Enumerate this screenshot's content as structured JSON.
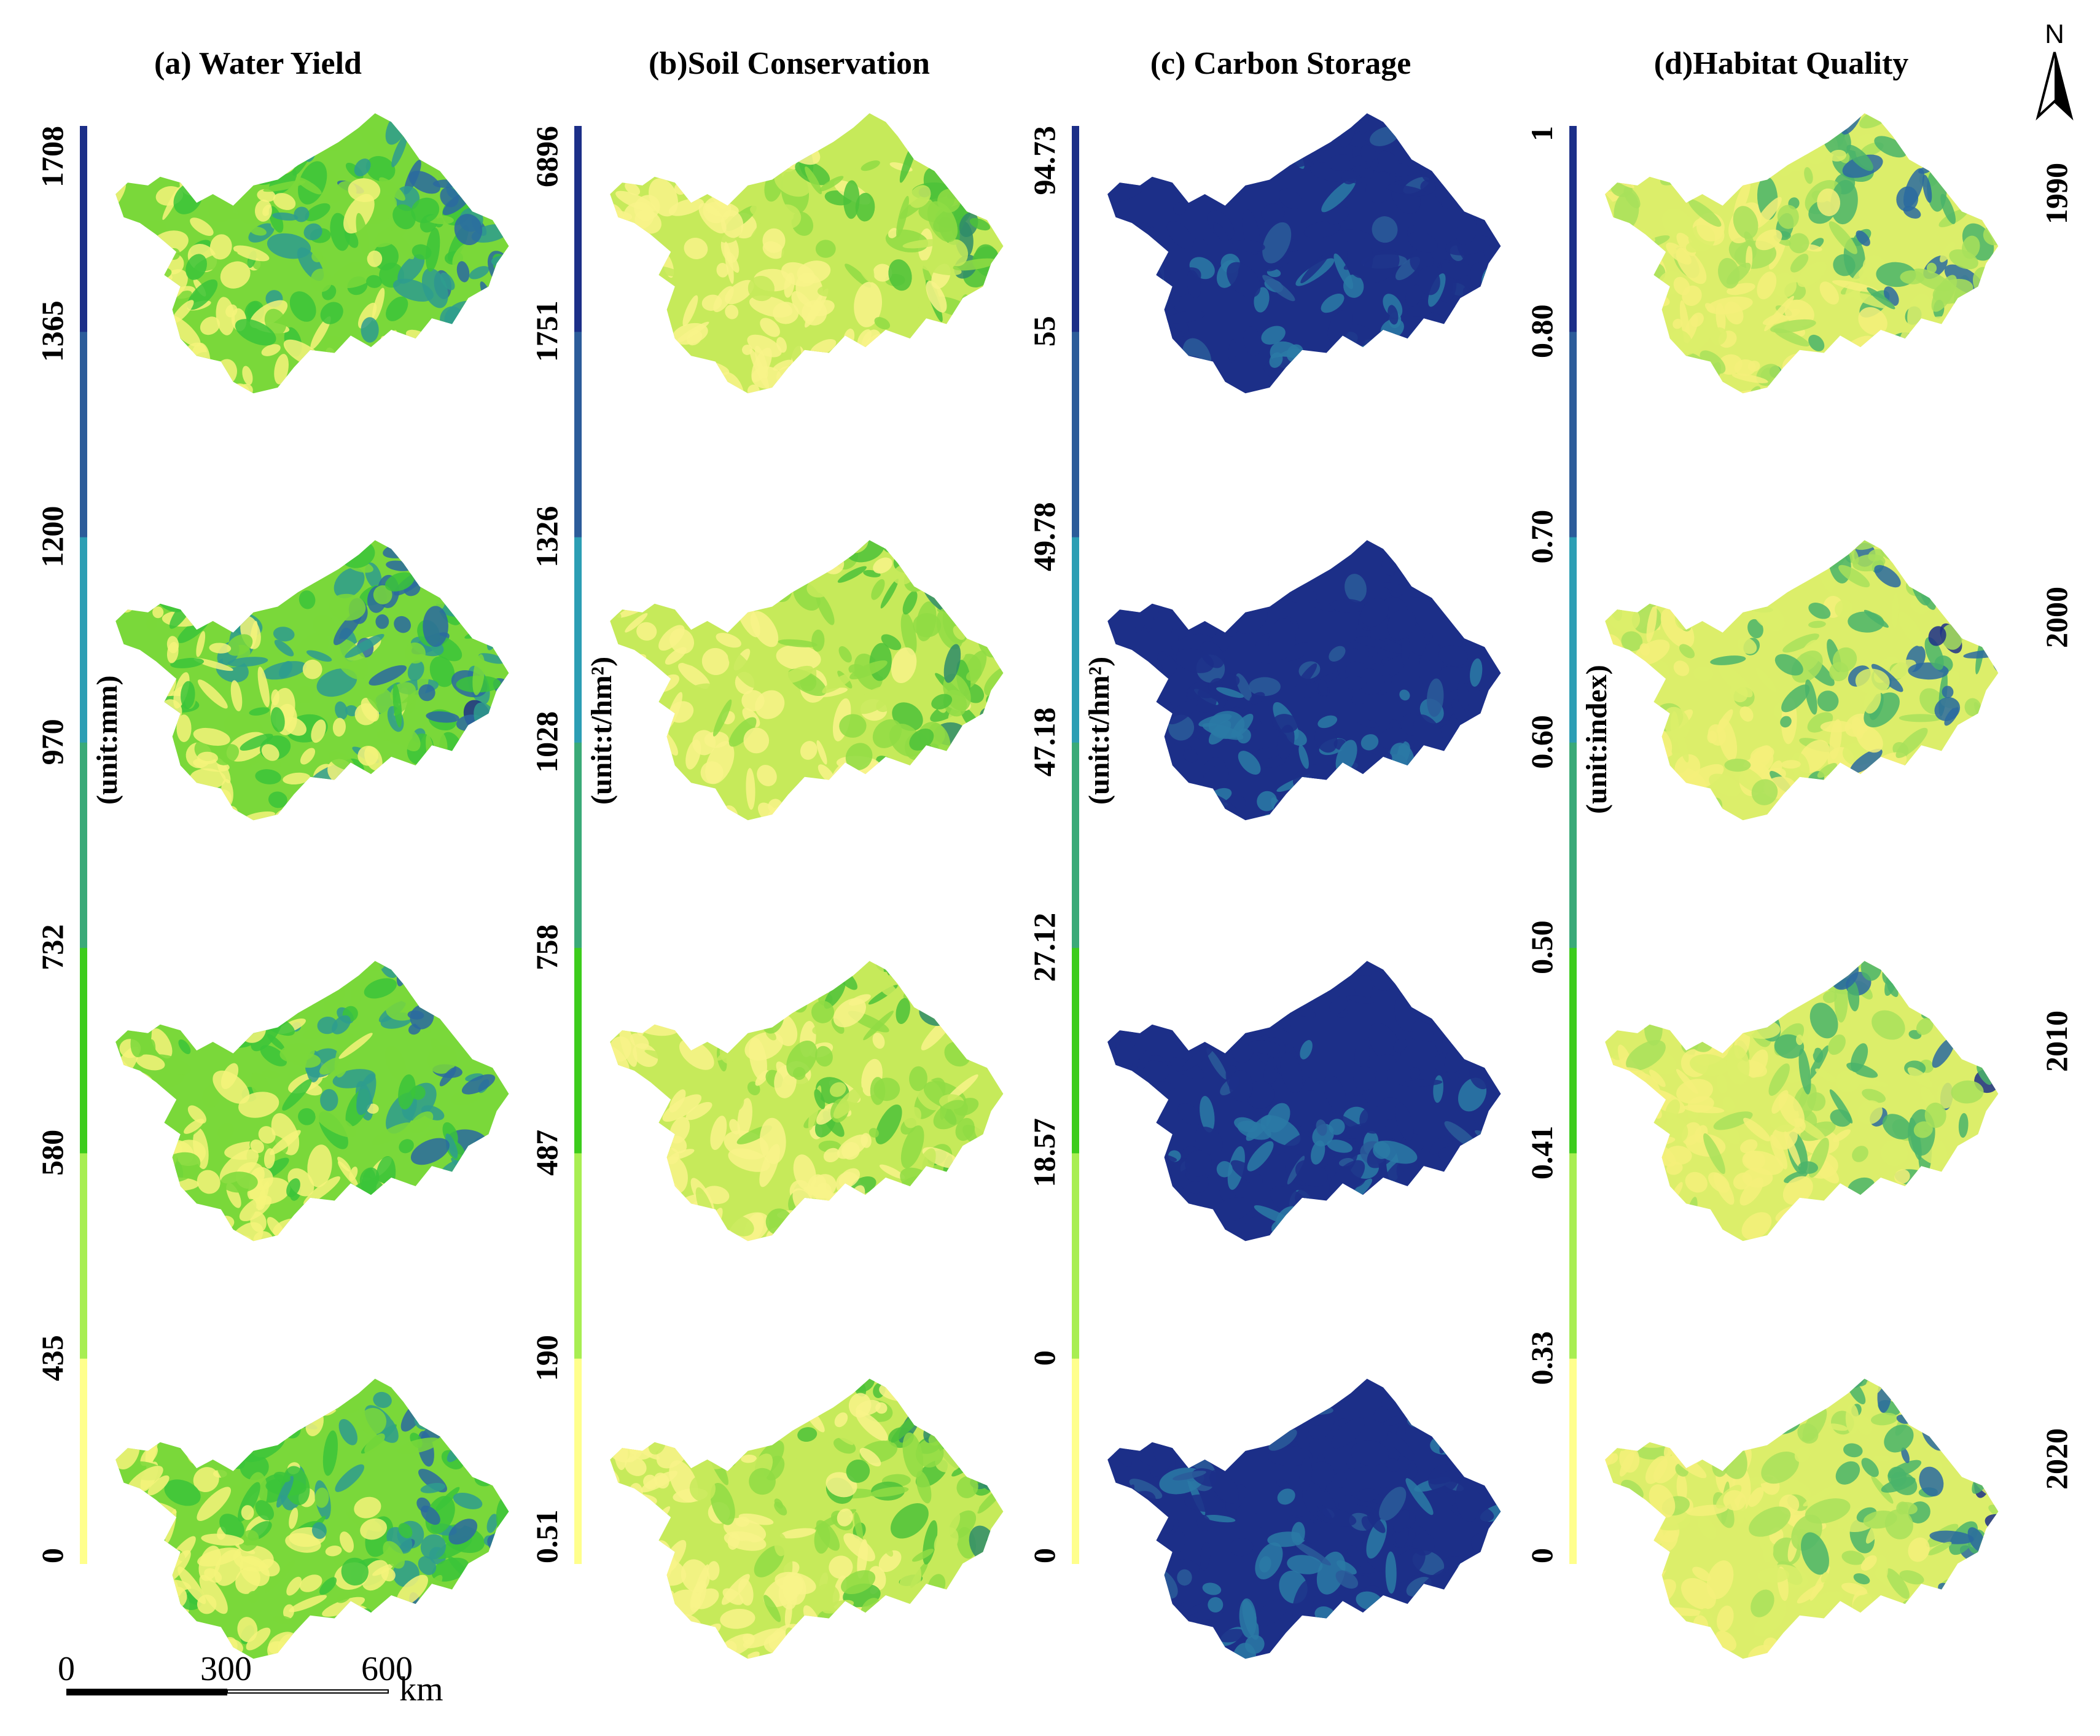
{
  "figure": {
    "panels": [
      {
        "id": "water-yield",
        "title": "(a) Water Yield",
        "unit": "(unit:mm)",
        "breaks": [
          "0",
          "435",
          "580",
          "732",
          "970",
          "1200",
          "1365",
          "1708"
        ],
        "share_dark": [
          0.34,
          0.38,
          0.3,
          0.28
        ]
      },
      {
        "id": "soil-conservation",
        "title": "(b)Soil Conservation",
        "unit": "(unit:t/hm²)",
        "breaks": [
          "0.51",
          "190",
          "487",
          "758",
          "1028",
          "1326",
          "1751",
          "6896"
        ],
        "share_dark": [
          0.12,
          0.14,
          0.13,
          0.12
        ]
      },
      {
        "id": "carbon-storage",
        "title": "(c) Carbon Storage",
        "unit": "(unit:t/hm²)",
        "breaks": [
          "0",
          "0",
          "18.57",
          "27.12",
          "47.18",
          "49.78",
          "55",
          "94.73"
        ],
        "share_dark": [
          0.92,
          0.92,
          0.92,
          0.92
        ]
      },
      {
        "id": "habitat-quality",
        "title": "(d)Habitat Quality",
        "unit": "(unit:index)",
        "breaks": [
          "0",
          "0.33",
          "0.41",
          "0.50",
          "0.60",
          "0.70",
          "0.80",
          "1"
        ],
        "share_dark": [
          0.42,
          0.38,
          0.35,
          0.3
        ]
      }
    ],
    "years": [
      "1990",
      "2000",
      "2010",
      "2020"
    ],
    "legend_colors": [
      "#ffff8c",
      "#a8ee52",
      "#3ccc1c",
      "#3aaa78",
      "#2c9eb4",
      "#2c5c9a",
      "#1c2f88"
    ],
    "scale_bar": {
      "ticks": [
        "0",
        "300",
        "600"
      ],
      "unit": "km"
    },
    "north_arrow": {
      "label": "N"
    }
  }
}
